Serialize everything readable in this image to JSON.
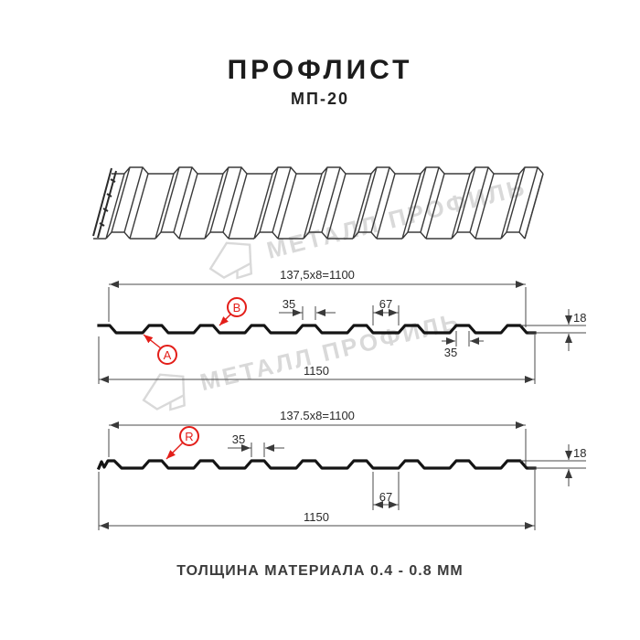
{
  "header": {
    "title": "ПРОФЛИСТ",
    "subtitle": "МП-20"
  },
  "watermark": {
    "text": "МЕТАЛЛ ПРОФИЛЬ"
  },
  "diagram_top": {
    "dim_pitch": "137,5x8=1100",
    "dim_rib_top": "35",
    "dim_flat_bottom": "67",
    "dim_height": "18",
    "dim_rib_top2": "35",
    "dim_width": "1150",
    "marker_a": "A",
    "marker_b": "B"
  },
  "diagram_bottom": {
    "dim_pitch": "137.5x8=1100",
    "dim_rib_top": "35",
    "dim_flat_bottom": "67",
    "dim_height": "18",
    "dim_width": "1150",
    "marker_r": "R"
  },
  "footer": {
    "text": "ТОЛЩИНА МАТЕРИАЛА 0.4 - 0.8 ММ"
  },
  "colors": {
    "accent_red": "#e31e19",
    "line": "#4a4a4a",
    "watermark": "#d9d9d9"
  }
}
